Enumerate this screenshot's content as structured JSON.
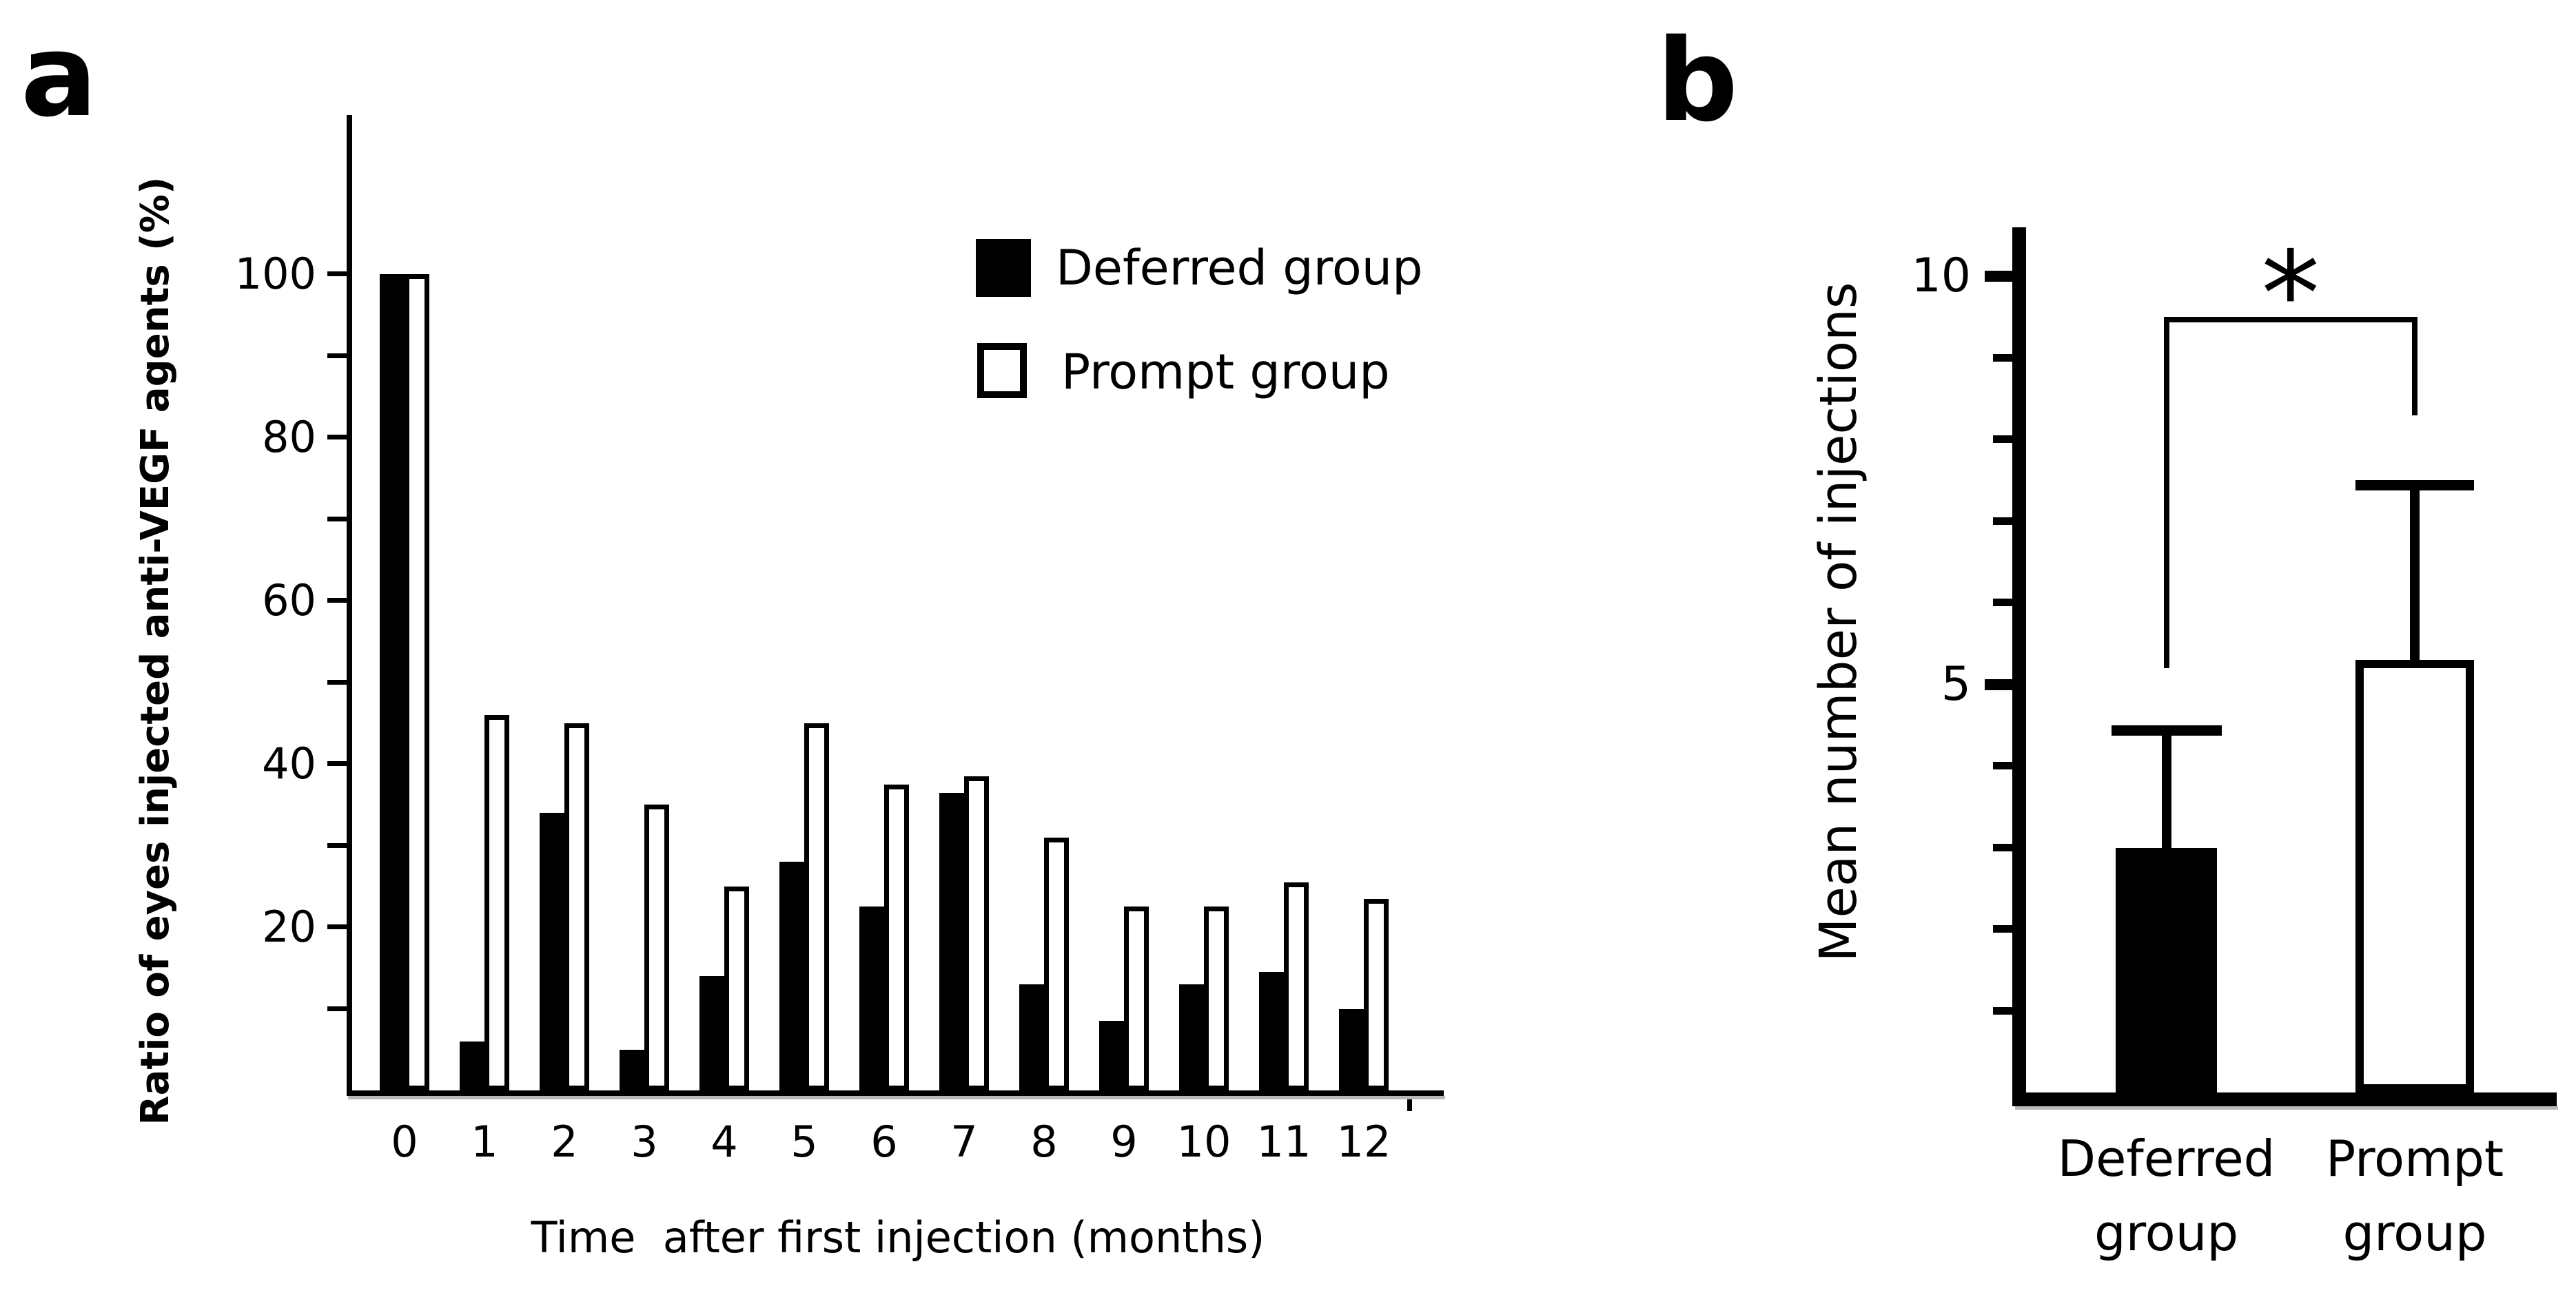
{
  "figure": {
    "background": "#ffffff",
    "panels": [
      {
        "label": "a"
      },
      {
        "label": "b"
      }
    ]
  },
  "chart_data": [
    {
      "panel": "a",
      "type": "bar",
      "title": "",
      "xlabel": "Time  after first injection (months)",
      "ylabel": "Ratio of eyes injected anti-VEGF agents (%)",
      "categories": [
        0,
        1,
        2,
        3,
        4,
        5,
        6,
        7,
        8,
        9,
        10,
        11,
        12
      ],
      "series": [
        {
          "name": "Deferred group",
          "fill": "#000000",
          "values": [
            100,
            6,
            34,
            5,
            14,
            28,
            22.5,
            36.5,
            13,
            8.5,
            13,
            14.5,
            10
          ]
        },
        {
          "name": "Prompt group",
          "fill": "#ffffff",
          "values": [
            100,
            46,
            45,
            35,
            25,
            45,
            37.5,
            38.5,
            31,
            22.5,
            22.5,
            25.5,
            23.5
          ]
        }
      ],
      "ylim": [
        0,
        119.5
      ],
      "yticks": [
        10,
        20,
        30,
        40,
        50,
        60,
        70,
        80,
        90,
        100
      ],
      "ytick_labels": [
        20,
        40,
        60,
        80,
        100
      ],
      "grid": false,
      "legend_position": "upper right"
    },
    {
      "panel": "b",
      "type": "bar",
      "title": "",
      "xlabel": "",
      "ylabel": "Mean number of injections",
      "ylim": [
        0,
        10.6
      ],
      "yticks": [
        1,
        2,
        3,
        4,
        5,
        6,
        7,
        8,
        9,
        10
      ],
      "ytick_labels": [
        5,
        10
      ],
      "grid": false,
      "bars": [
        {
          "label_lines": [
            "Deferred",
            "group"
          ],
          "fill": "#000000",
          "mean": 3.0,
          "error_top": 4.5
        },
        {
          "label_lines": [
            "Prompt",
            "group"
          ],
          "fill": "#ffffff",
          "mean": 5.3,
          "error_top": 7.5
        }
      ],
      "significance": {
        "symbol": "*",
        "bracket_y": 9.5,
        "left_leg_bottom": 5.2,
        "right_leg_bottom": 8.3
      }
    }
  ]
}
